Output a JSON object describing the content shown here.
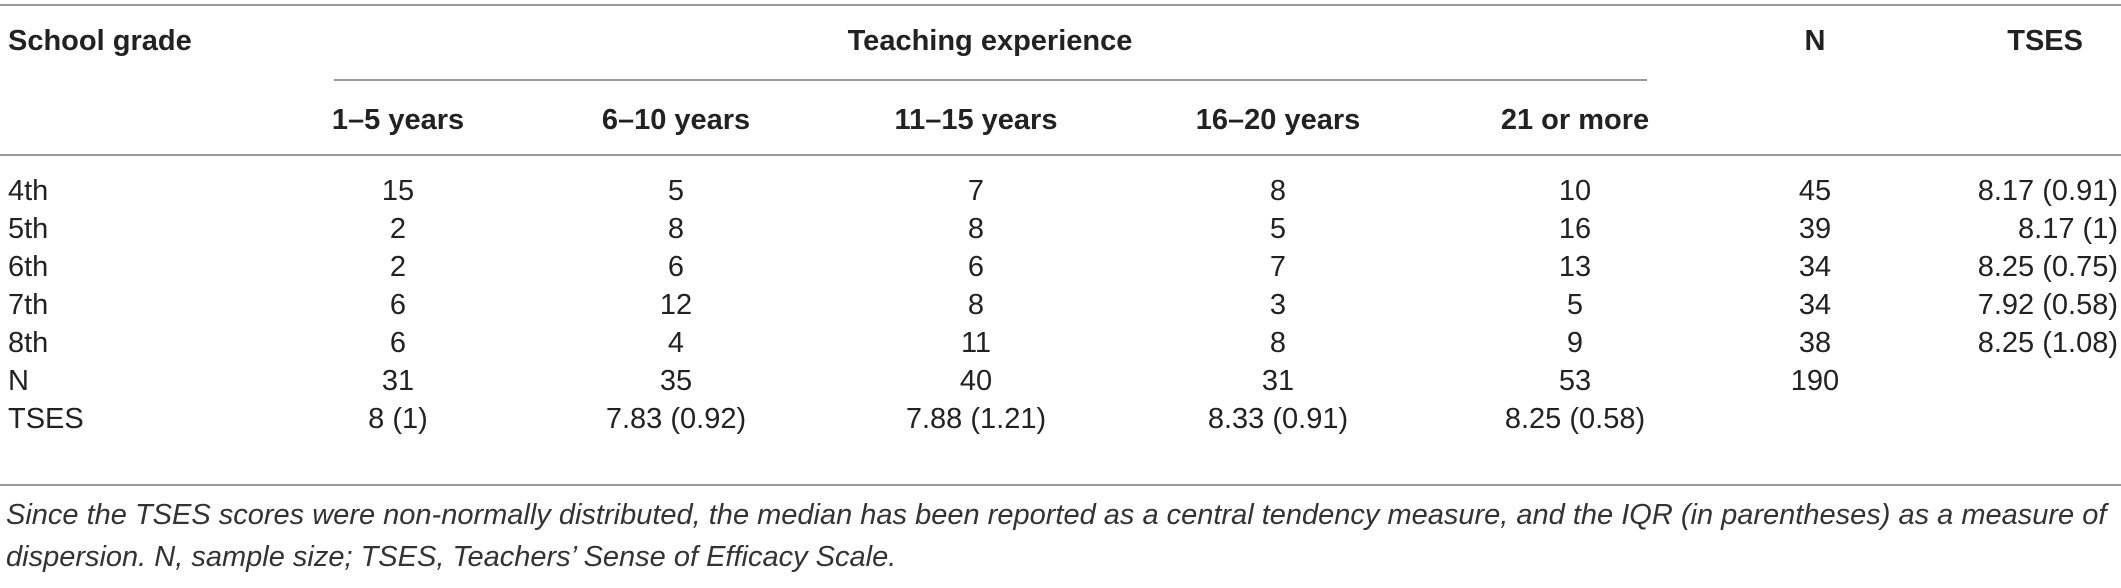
{
  "headers": {
    "school_grade": "School grade",
    "teaching_experience": "Teaching experience",
    "n": "N",
    "tses": "TSES",
    "experience_columns": [
      "1–5 years",
      "6–10 years",
      "11–15 years",
      "16–20 years",
      "21 or more"
    ]
  },
  "rows": [
    {
      "label": "4th",
      "cells": [
        "15",
        "5",
        "7",
        "8",
        "10"
      ],
      "n": "45",
      "tses": "8.17 (0.91)"
    },
    {
      "label": "5th",
      "cells": [
        "2",
        "8",
        "8",
        "5",
        "16"
      ],
      "n": "39",
      "tses": "8.17 (1)"
    },
    {
      "label": "6th",
      "cells": [
        "2",
        "6",
        "6",
        "7",
        "13"
      ],
      "n": "34",
      "tses": "8.25 (0.75)"
    },
    {
      "label": "7th",
      "cells": [
        "6",
        "12",
        "8",
        "3",
        "5"
      ],
      "n": "34",
      "tses": "7.92 (0.58)"
    },
    {
      "label": "8th",
      "cells": [
        "6",
        "4",
        "11",
        "8",
        "9"
      ],
      "n": "38",
      "tses": "8.25 (1.08)"
    },
    {
      "label": "N",
      "cells": [
        "31",
        "35",
        "40",
        "31",
        "53"
      ],
      "n": "190",
      "tses": ""
    },
    {
      "label": "TSES",
      "cells": [
        "8 (1)",
        "7.83 (0.92)",
        "7.88 (1.21)",
        "8.33 (0.91)",
        "8.25 (0.58)"
      ],
      "n": "",
      "tses": ""
    }
  ],
  "footnote": "Since the TSES scores were non-normally distributed, the median has been reported as a central tendency measure, and the IQR (in parentheses) as a measure of dispersion. N, sample size; TSES, Teachers’ Sense of Efficacy Scale."
}
